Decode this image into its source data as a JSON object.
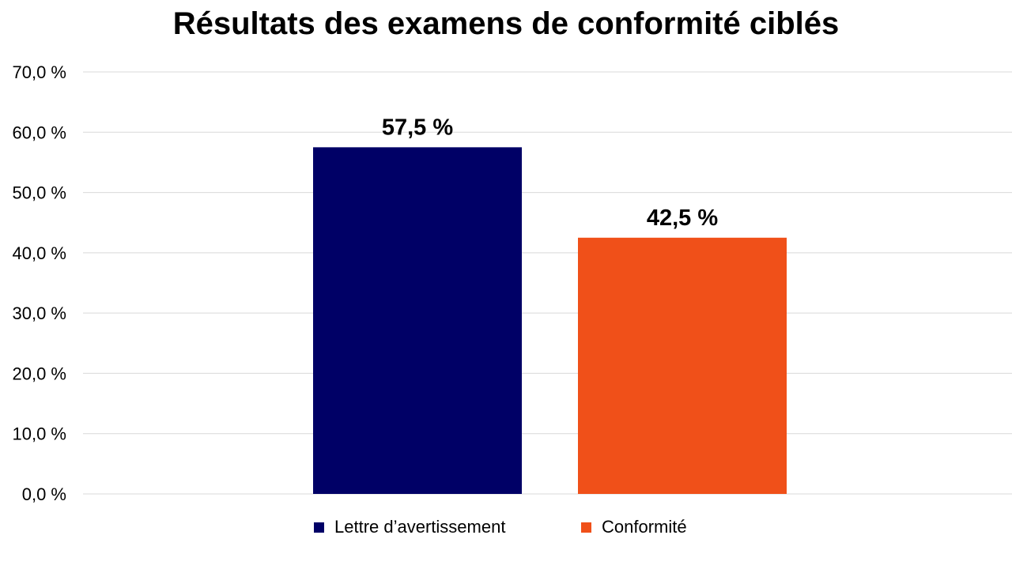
{
  "chart_data": {
    "type": "bar",
    "title": "Résultats des examens de conformité ciblés",
    "categories": [
      "Lettre d’avertissement",
      "Conformité"
    ],
    "values": [
      57.5,
      42.5
    ],
    "value_labels": [
      "57,5 %",
      "42,5 %"
    ],
    "colors": [
      "#000066",
      "#F05019"
    ],
    "xlabel": "",
    "ylabel": "",
    "ylim": [
      0,
      70
    ],
    "yticks": [
      0,
      10,
      20,
      30,
      40,
      50,
      60,
      70
    ],
    "ytick_labels": [
      "0,0 %",
      "10,0 %",
      "20,0 %",
      "30,0 %",
      "40,0 %",
      "50,0 %",
      "60,0 %",
      "70,0 %"
    ],
    "grid": true,
    "gridline_color": "#d9d9d9",
    "legend": {
      "placement": "bottom",
      "entries": [
        "Lettre d’avertissement",
        "Conformité"
      ]
    }
  }
}
